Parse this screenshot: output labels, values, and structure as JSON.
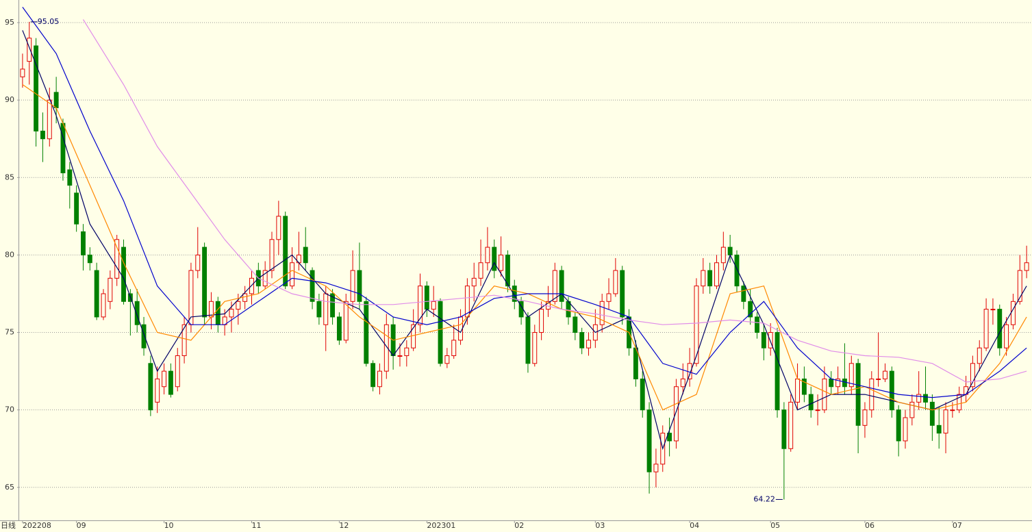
{
  "chart_data": {
    "type": "candlestick",
    "period": "日线",
    "ylim": [
      62.87,
      96.46
    ],
    "yticks": [
      65,
      70,
      75,
      80,
      85,
      90,
      95
    ],
    "grid": true,
    "xlim": [
      -0.5,
      149.8
    ],
    "xticks": [
      {
        "value": 0,
        "label": "202208"
      },
      {
        "value": 8,
        "label": "09"
      },
      {
        "value": 21,
        "label": "10"
      },
      {
        "value": 34,
        "label": "11"
      },
      {
        "value": 47,
        "label": "12"
      },
      {
        "value": 60,
        "label": "202301"
      },
      {
        "value": 73,
        "label": "02"
      },
      {
        "value": 85,
        "label": "03"
      },
      {
        "value": 99,
        "label": "04"
      },
      {
        "value": 111,
        "label": "05"
      },
      {
        "value": 125,
        "label": "06"
      },
      {
        "value": 138,
        "label": "07"
      }
    ],
    "up_color": "#e00000",
    "down_color": "#008000",
    "max_label": "95.05",
    "min_label": "64.22",
    "candles": [
      [
        91.5,
        93,
        90.8,
        92
      ],
      [
        92.5,
        95.05,
        91,
        94
      ],
      [
        93.5,
        94,
        87,
        88
      ],
      [
        88,
        89.2,
        86,
        87.5
      ],
      [
        87.5,
        90.8,
        87,
        90
      ],
      [
        90.5,
        91.5,
        88.5,
        89.5
      ],
      [
        88.5,
        88.8,
        84.8,
        85.3
      ],
      [
        85.5,
        86,
        83,
        84.5
      ],
      [
        84,
        84.5,
        81.5,
        82
      ],
      [
        81.5,
        82,
        79,
        80
      ],
      [
        80,
        80.5,
        79,
        79.5
      ],
      [
        79,
        79.5,
        75.8,
        76
      ],
      [
        76,
        77.8,
        75.8,
        77.5
      ],
      [
        77,
        79,
        76.5,
        78.5
      ],
      [
        78.5,
        81.3,
        78,
        81
      ],
      [
        80.5,
        81,
        76.8,
        77
      ],
      [
        77.5,
        77.8,
        74.8,
        77
      ],
      [
        77,
        77.8,
        75,
        75.5
      ],
      [
        75.5,
        76,
        73.5,
        74
      ],
      [
        73,
        73.5,
        69.6,
        70
      ],
      [
        70.5,
        72.8,
        69.8,
        72
      ],
      [
        71.5,
        73,
        71,
        72.5
      ],
      [
        72.5,
        73,
        70.8,
        71
      ],
      [
        71.5,
        74,
        71.2,
        73.5
      ],
      [
        73.5,
        76,
        73,
        75.5
      ],
      [
        75.5,
        79.5,
        75,
        79
      ],
      [
        79,
        81.8,
        78.5,
        80
      ],
      [
        80.5,
        80.8,
        75.5,
        76
      ],
      [
        76,
        77.6,
        75.2,
        77
      ],
      [
        77,
        77.3,
        75,
        75.5
      ],
      [
        75.5,
        76.5,
        74.8,
        76
      ],
      [
        76,
        77,
        75,
        76.5
      ],
      [
        76.5,
        77.5,
        75.5,
        77
      ],
      [
        77,
        78,
        76.5,
        77.5
      ],
      [
        77.5,
        79,
        76.8,
        78.5
      ],
      [
        79,
        79.5,
        77.5,
        78
      ],
      [
        78,
        79.6,
        77.8,
        79
      ],
      [
        79,
        81.5,
        78.5,
        81
      ],
      [
        81,
        83.5,
        80,
        82.5
      ],
      [
        82.5,
        82.8,
        77.8,
        78
      ],
      [
        78,
        80.5,
        77.8,
        79.5
      ],
      [
        79.5,
        81.5,
        79,
        80
      ],
      [
        80.5,
        81.8,
        79,
        79.5
      ],
      [
        79,
        79.2,
        76.5,
        77
      ],
      [
        77,
        77.5,
        75.5,
        76
      ],
      [
        75.5,
        78,
        73.8,
        77.5
      ],
      [
        77.5,
        77.8,
        75.5,
        76
      ],
      [
        76,
        76.3,
        74.2,
        74.5
      ],
      [
        74.5,
        77.5,
        74.3,
        77
      ],
      [
        77,
        80.3,
        76.5,
        79
      ],
      [
        79,
        80.8,
        76.5,
        77
      ],
      [
        77,
        77.3,
        72.8,
        73
      ],
      [
        73,
        73.2,
        71.2,
        71.5
      ],
      [
        71.5,
        73,
        71,
        72.5
      ],
      [
        72.5,
        76.2,
        72,
        75.5
      ],
      [
        75.5,
        76,
        72.6,
        73.5
      ],
      [
        73.5,
        74.3,
        72.8,
        73.5
      ],
      [
        73.5,
        74.5,
        72.8,
        74
      ],
      [
        74,
        76.5,
        73.8,
        75.5
      ],
      [
        75.5,
        78.8,
        75,
        78
      ],
      [
        78,
        78.3,
        76,
        76.5
      ],
      [
        76.5,
        78,
        76,
        77
      ],
      [
        77,
        77.2,
        72.8,
        73
      ],
      [
        73,
        74,
        72.7,
        73.5
      ],
      [
        73.5,
        75.5,
        73.3,
        74.5
      ],
      [
        74.5,
        76.5,
        74.2,
        76
      ],
      [
        76,
        78.5,
        75.5,
        78
      ],
      [
        78,
        79.5,
        77,
        78.5
      ],
      [
        78.5,
        81,
        78,
        79.5
      ],
      [
        79.5,
        81.8,
        79,
        80.5
      ],
      [
        80.5,
        81,
        78.5,
        79
      ],
      [
        79,
        81.2,
        78.6,
        80
      ],
      [
        80,
        80.3,
        77.6,
        78
      ],
      [
        78,
        78.4,
        76.5,
        77
      ],
      [
        77,
        77.3,
        75.5,
        76
      ],
      [
        76,
        76.3,
        72.4,
        73
      ],
      [
        73,
        75.5,
        72.8,
        75
      ],
      [
        75,
        77,
        74.5,
        76.5
      ],
      [
        76.5,
        78,
        76,
        77
      ],
      [
        77,
        79.5,
        76.8,
        79
      ],
      [
        79,
        79.3,
        76.5,
        77
      ],
      [
        77,
        77.3,
        75.5,
        76
      ],
      [
        76,
        76.3,
        74.5,
        75
      ],
      [
        75,
        75.3,
        73.6,
        74
      ],
      [
        74,
        75,
        73.5,
        74.5
      ],
      [
        74.5,
        76.5,
        74,
        75.5
      ],
      [
        75.5,
        77.5,
        75,
        77
      ],
      [
        77,
        78.5,
        76.5,
        77.5
      ],
      [
        77.5,
        79.8,
        77.3,
        79
      ],
      [
        79,
        79.3,
        75.5,
        76
      ],
      [
        76,
        76.5,
        73.5,
        74
      ],
      [
        74,
        74.5,
        71.5,
        72
      ],
      [
        72,
        72.5,
        69.5,
        70
      ],
      [
        70,
        70.5,
        64.6,
        66
      ],
      [
        66,
        67.5,
        65,
        66.5
      ],
      [
        66.5,
        69,
        66,
        68.5
      ],
      [
        68.5,
        69.5,
        67,
        68
      ],
      [
        68,
        72,
        67.5,
        71.5
      ],
      [
        71.5,
        73,
        71,
        72
      ],
      [
        72,
        74,
        71.5,
        73
      ],
      [
        73,
        78.5,
        72.8,
        78
      ],
      [
        78,
        79.8,
        77.5,
        79
      ],
      [
        79,
        79.5,
        77.5,
        78
      ],
      [
        78,
        80,
        77.8,
        79.5
      ],
      [
        79.5,
        81.5,
        79,
        80.5
      ],
      [
        80.5,
        81.3,
        79.5,
        80
      ],
      [
        80,
        80.3,
        77.6,
        78
      ],
      [
        78,
        78.3,
        76.5,
        77
      ],
      [
        77,
        77.8,
        75.5,
        76
      ],
      [
        76,
        76.3,
        74.6,
        75
      ],
      [
        75,
        75.5,
        73.2,
        74
      ],
      [
        74,
        75.6,
        73.5,
        75
      ],
      [
        75,
        75.3,
        69.5,
        70
      ],
      [
        70,
        70.5,
        64.22,
        67.5
      ],
      [
        67.5,
        71,
        67.3,
        70.5
      ],
      [
        70.5,
        73,
        70,
        72
      ],
      [
        72,
        72.8,
        70.5,
        71
      ],
      [
        71,
        71.5,
        69.5,
        70
      ],
      [
        70,
        71,
        69,
        70
      ],
      [
        70,
        72.8,
        69.8,
        72
      ],
      [
        72,
        72.5,
        71,
        71.5
      ],
      [
        71.5,
        72.8,
        71,
        72
      ],
      [
        72,
        74.3,
        71,
        71.5
      ],
      [
        71.5,
        73.5,
        71,
        73
      ],
      [
        73,
        73.3,
        67.2,
        69
      ],
      [
        69,
        70.5,
        68.2,
        70
      ],
      [
        70,
        72.5,
        69.5,
        72
      ],
      [
        72,
        75,
        71.5,
        72
      ],
      [
        72,
        73,
        71.8,
        72.5
      ],
      [
        72.5,
        72.8,
        69.5,
        70
      ],
      [
        70,
        70.3,
        67,
        68
      ],
      [
        68,
        70,
        67.5,
        69.5
      ],
      [
        69.5,
        71,
        69,
        70.5
      ],
      [
        70.5,
        72.5,
        70,
        71
      ],
      [
        71,
        72.8,
        70,
        70.5
      ],
      [
        70.5,
        71,
        68,
        69
      ],
      [
        69,
        70.2,
        67.5,
        68.5
      ],
      [
        68.5,
        70.5,
        67.2,
        70
      ],
      [
        70,
        70.5,
        69.5,
        70
      ],
      [
        70,
        71.5,
        69.8,
        71
      ],
      [
        71,
        72.2,
        70.5,
        71.5
      ],
      [
        71.5,
        73.5,
        71.2,
        73
      ],
      [
        73,
        74.5,
        72.5,
        74
      ],
      [
        74,
        77.2,
        73.8,
        76.5
      ],
      [
        76.5,
        77.2,
        75.5,
        76.5
      ],
      [
        76.5,
        76.8,
        73.5,
        74
      ],
      [
        74,
        76,
        73.5,
        75.5
      ],
      [
        75.5,
        77.5,
        75.2,
        77
      ],
      [
        77,
        80,
        76.8,
        79
      ],
      [
        79,
        80.6,
        78.5,
        79.5
      ]
    ],
    "series": [
      {
        "color": "#000066",
        "x": [
          0,
          5,
          10,
          15,
          20,
          25,
          30,
          35,
          40,
          45,
          50,
          55,
          60,
          65,
          70,
          75,
          80,
          85,
          90,
          95,
          100,
          105,
          110,
          115,
          120,
          125,
          130,
          135,
          140,
          145,
          149
        ],
        "values": [
          94.5,
          89,
          82,
          78.5,
          72.5,
          76,
          76.2,
          78.5,
          80,
          77.5,
          76.5,
          73.5,
          76.5,
          75,
          79.5,
          76,
          77.5,
          75,
          76,
          67.5,
          73.5,
          80,
          75.5,
          70,
          71,
          71,
          70.5,
          70,
          71,
          75,
          78
        ]
      },
      {
        "color": "#ff8800",
        "x": [
          0,
          5,
          10,
          15,
          20,
          25,
          30,
          35,
          40,
          45,
          50,
          55,
          60,
          65,
          70,
          75,
          80,
          85,
          90,
          95,
          100,
          105,
          110,
          115,
          120,
          125,
          130,
          135,
          140,
          145,
          149
        ],
        "values": [
          91,
          89.5,
          84.5,
          79.5,
          75,
          74.5,
          77,
          77.5,
          79,
          78,
          76,
          74.5,
          75,
          75.5,
          78,
          77.5,
          76.5,
          76,
          75,
          70,
          71,
          77.5,
          78,
          72,
          71,
          71.5,
          70.5,
          70,
          70.5,
          73,
          76
        ]
      },
      {
        "color": "#0000cc",
        "x": [
          0,
          5,
          10,
          15,
          20,
          25,
          30,
          35,
          40,
          45,
          50,
          55,
          60,
          65,
          70,
          75,
          80,
          85,
          90,
          95,
          100,
          105,
          110,
          115,
          120,
          125,
          130,
          135,
          140,
          145,
          149
        ],
        "values": [
          96,
          93,
          88,
          83.5,
          78,
          75.5,
          75.5,
          77,
          78.5,
          78.2,
          77.5,
          76,
          75.5,
          76,
          77.2,
          77.5,
          77.5,
          76.8,
          76,
          73,
          72.3,
          75,
          77,
          74,
          72,
          71.5,
          71,
          70.8,
          71,
          72.5,
          74
        ]
      },
      {
        "color": "#e08ce8",
        "x": [
          9,
          15,
          20,
          25,
          30,
          35,
          40,
          45,
          50,
          55,
          60,
          65,
          70,
          75,
          80,
          85,
          90,
          95,
          100,
          105,
          110,
          115,
          120,
          125,
          130,
          135,
          140,
          145,
          149
        ],
        "values": [
          95.2,
          91,
          87,
          84,
          81,
          78.5,
          77.5,
          77,
          76.8,
          76.8,
          77,
          77.2,
          77.4,
          77,
          76.5,
          76.2,
          75.8,
          75.5,
          75.6,
          75.8,
          75.6,
          74.5,
          73.8,
          73.5,
          73.4,
          73,
          71.8,
          72,
          72.5
        ]
      }
    ]
  }
}
